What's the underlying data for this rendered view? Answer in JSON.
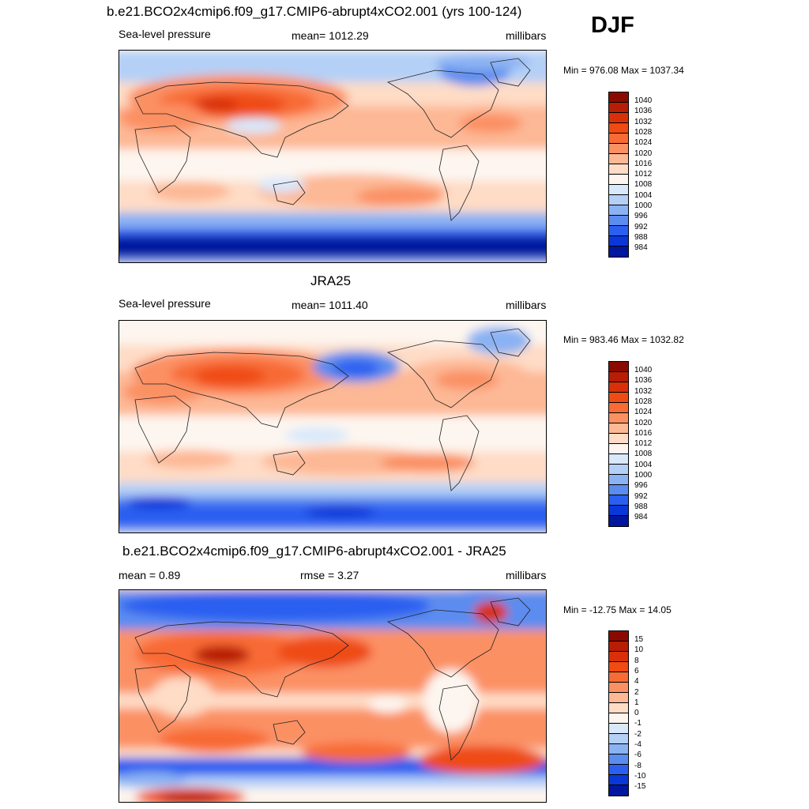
{
  "season": "DJF",
  "panels": [
    {
      "title": "b.e21.BCO2x4cmip6.f09_g17.CMIP6-abrupt4xCO2.001 (yrs 100-124)",
      "left_label": "Sea-level pressure",
      "center_label": "mean= 1012.29",
      "right_label": "millibars",
      "minmax": "Min = 976.08 Max = 1037.34",
      "colorbar": "abs",
      "pattern": "model"
    },
    {
      "title": "JRA25",
      "left_label": "Sea-level pressure",
      "center_label": "mean= 1011.40",
      "right_label": "millibars",
      "minmax": "Min = 983.46 Max = 1032.82",
      "colorbar": "abs",
      "pattern": "obs"
    },
    {
      "title": "b.e21.BCO2x4cmip6.f09_g17.CMIP6-abrupt4xCO2.001 - JRA25",
      "left_label": "mean =   0.89",
      "center_label": "rmse =   3.27",
      "right_label": "millibars",
      "minmax": "Min = -12.75 Max =  14.05",
      "colorbar": "diff",
      "pattern": "diff"
    }
  ],
  "colorbars": {
    "abs": {
      "labels": [
        "1040",
        "1036",
        "1032",
        "1028",
        "1024",
        "1020",
        "1016",
        "1012",
        "1008",
        "1004",
        "1000",
        "996",
        "992",
        "988",
        "984"
      ],
      "colors": [
        "#8b0a00",
        "#b81d05",
        "#d9300a",
        "#ef4b12",
        "#f86b34",
        "#fb9063",
        "#fdb895",
        "#fedcc6",
        "#fdf6f0",
        "#d9e8fb",
        "#b4d0f7",
        "#8bb2f3",
        "#5b8cef",
        "#2a5ff0",
        "#0a37d8",
        "#00169e"
      ]
    },
    "diff": {
      "labels": [
        "15",
        "10",
        "8",
        "6",
        "4",
        "2",
        "1",
        "0",
        "-1",
        "-2",
        "-4",
        "-6",
        "-8",
        "-10",
        "-15"
      ],
      "colors": [
        "#8b0a00",
        "#b81d05",
        "#d9300a",
        "#ef4b12",
        "#f86b34",
        "#fb9063",
        "#fdb895",
        "#fedcc6",
        "#fdf6f0",
        "#d9e8fb",
        "#b4d0f7",
        "#8bb2f3",
        "#5b8cef",
        "#2a5ff0",
        "#0a37d8",
        "#00169e"
      ]
    }
  }
}
